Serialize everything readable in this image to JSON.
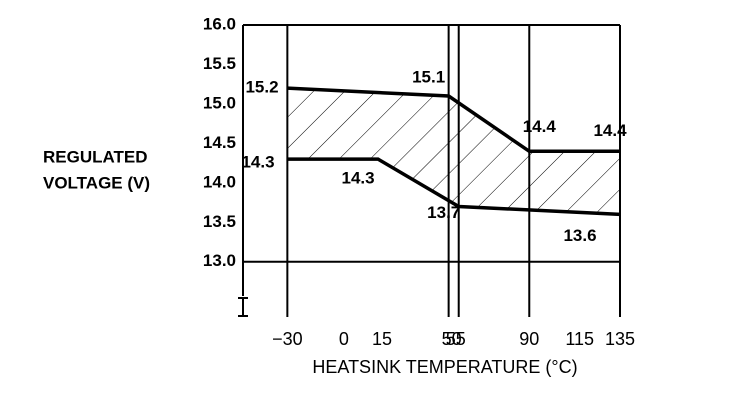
{
  "chart_data": {
    "type": "line",
    "ylabel": [
      "REGULATED",
      "VOLTAGE (V)"
    ],
    "xlabel": "HEATSINK TEMPERATURE (°C)",
    "series": [
      {
        "x": [
          -30,
          50,
          90,
          135
        ],
        "values": [
          15.2,
          15.1,
          14.4,
          14.4
        ],
        "color": "#000000"
      },
      {
        "x": [
          -30,
          15,
          55,
          135
        ],
        "values": [
          14.3,
          14.3,
          13.7,
          13.6
        ],
        "color": "#000000"
      }
    ],
    "xlim": [
      -52,
      135
    ],
    "xticks": [
      {
        "value": -30,
        "label": "−30"
      },
      0,
      15,
      50,
      55,
      90,
      115,
      135
    ],
    "ylim": [
      12.3,
      16
    ],
    "yticks": [
      {
        "value": 13,
        "label": "13.0"
      },
      13.5,
      {
        "value": 14,
        "label": "14.0"
      },
      14.5,
      {
        "value": 15,
        "label": "15.0"
      },
      15.5,
      {
        "value": 16,
        "label": "16.0"
      }
    ],
    "xgrid": [
      -30,
      50,
      55,
      90,
      135
    ],
    "ygrid": [
      13,
      16
    ],
    "hatched_band": true
  }
}
